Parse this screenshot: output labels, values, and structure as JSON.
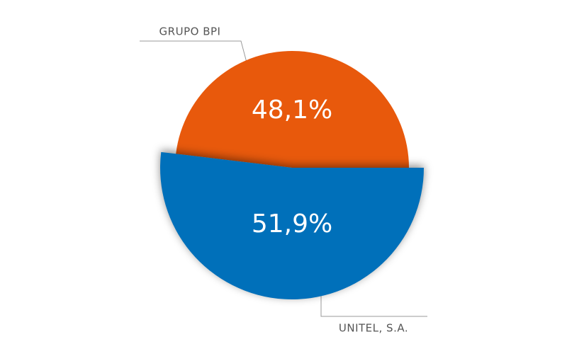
{
  "chart_data": {
    "type": "pie",
    "categories": [
      "GRUPO BPI",
      "UNITEL, S.A."
    ],
    "values": [
      48.1,
      51.9
    ],
    "value_labels": [
      "48,1%",
      "51,9%"
    ],
    "colors": [
      "#e8590c",
      "#0070ba"
    ]
  }
}
